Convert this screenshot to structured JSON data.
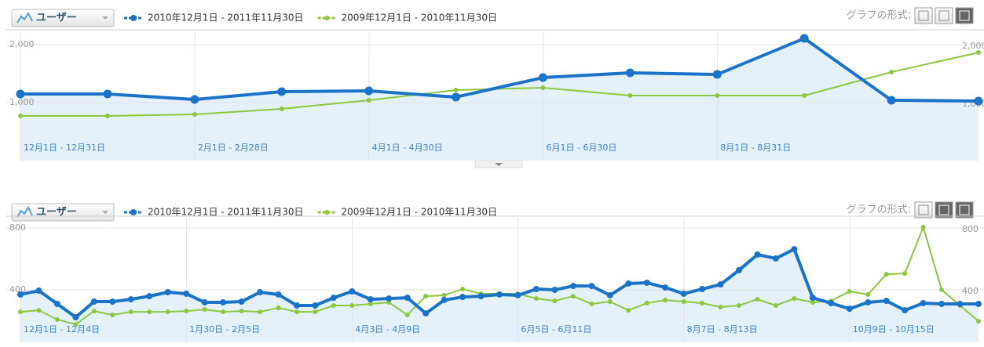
{
  "chart_data": [
    {
      "type": "line",
      "metric": "ユーザー",
      "format_label": "グラフの形式:",
      "categories": [
        "12月1日 - 12月31日",
        null,
        "2月1日 - 2月28日",
        null,
        "4月1日 - 4月30日",
        null,
        "6月1日 - 6月30日",
        null,
        "8月1日 - 8月31日",
        null,
        null,
        null
      ],
      "series": [
        {
          "name": "2010年12月1日 - 2011年11月30日",
          "color": "#1a73c8",
          "values": [
            1149,
            1149,
            1054,
            1189,
            1203,
            1095,
            1432,
            1514,
            1486,
            2108,
            1041,
            1027
          ]
        },
        {
          "name": "2009年12月1日 - 2010年11月30日",
          "color": "#8dc63f",
          "values": [
            770,
            770,
            797,
            892,
            1041,
            1216,
            1257,
            1122,
            1122,
            1122,
            1527,
            1865
          ]
        }
      ],
      "fill_color": "#e5f1fa",
      "ylim": [
        0,
        2230
      ],
      "yticks": [
        {
          "value": 1000,
          "label": "1,000"
        },
        {
          "value": 2000,
          "label": "2,000"
        }
      ],
      "grid": true
    },
    {
      "type": "line",
      "metric": "ユーザー",
      "format_label": "グラフの形式:",
      "categories": [
        "12月1日 - 12月4日",
        null,
        null,
        null,
        null,
        null,
        null,
        null,
        null,
        "1月30日 - 2月5日",
        null,
        null,
        null,
        null,
        null,
        null,
        null,
        null,
        "4月3日 - 4月9日",
        null,
        null,
        null,
        null,
        null,
        null,
        null,
        null,
        "6月5日 - 6月11日",
        null,
        null,
        null,
        null,
        null,
        null,
        null,
        null,
        "8月7日 - 8月13日",
        null,
        null,
        null,
        null,
        null,
        null,
        null,
        null,
        "10月9日 - 10月15日",
        null,
        null,
        null,
        null,
        null,
        null,
        null
      ],
      "series": [
        {
          "name": "2010年12月1日 - 2011年11月30日",
          "color": "#1a73c8",
          "values": [
            370,
            395,
            309,
            223,
            324,
            324,
            339,
            359,
            385,
            375,
            319,
            319,
            324,
            385,
            370,
            299,
            299,
            349,
            390,
            339,
            344,
            349,
            248,
            334,
            354,
            359,
            370,
            365,
            405,
            400,
            425,
            425,
            365,
            441,
            446,
            415,
            375,
            405,
            435,
            527,
            628,
            603,
            663,
            349,
            314,
            278,
            319,
            329,
            268,
            314,
            309,
            309,
            309
          ]
        },
        {
          "name": "2009年12月1日 - 2010年11月30日",
          "color": "#8dc63f",
          "values": [
            258,
            268,
            208,
            177,
            263,
            238,
            258,
            258,
            258,
            263,
            273,
            258,
            263,
            258,
            284,
            258,
            258,
            299,
            299,
            309,
            319,
            238,
            359,
            365,
            405,
            375,
            375,
            375,
            344,
            329,
            359,
            309,
            324,
            268,
            314,
            334,
            324,
            314,
            289,
            299,
            339,
            299,
            344,
            319,
            329,
            390,
            370,
            501,
            506,
            805,
            400,
            299,
            197
          ]
        }
      ],
      "fill_color": "#e5f1fa",
      "ylim": [
        61,
        866
      ],
      "yticks": [
        400,
        800
      ],
      "grid": true
    }
  ]
}
